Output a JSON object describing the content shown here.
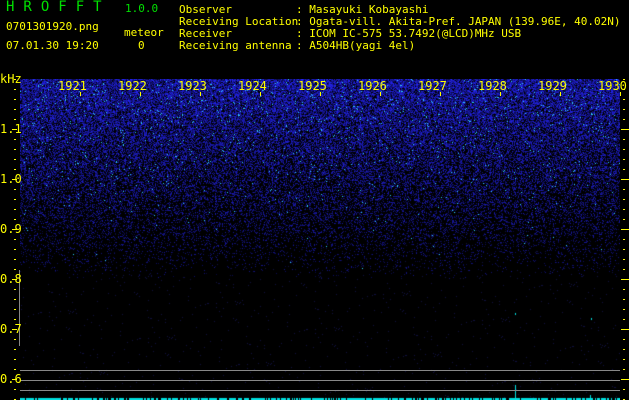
{
  "app": {
    "title": "HROFFT",
    "version": "1.0.0"
  },
  "file": {
    "name": "0701301920.png",
    "datetime": "07.01.30 19:20"
  },
  "meteor": {
    "label": "meteor",
    "count": "0"
  },
  "info": [
    {
      "label": "Observer",
      "value": "Masayuki Kobayashi"
    },
    {
      "label": "Receiving Location",
      "value": "Ogata-vill. Akita-Pref. JAPAN (139.96E, 40.02N)"
    },
    {
      "label": "Receiver",
      "value": "ICOM IC-575 53.7492(@LCD)MHz USB"
    },
    {
      "label": "Receiving antenna",
      "value": "A504HB(yagi 4el)"
    }
  ],
  "axis": {
    "unit": "kHz",
    "freq_labels": [
      "1.1",
      "1.0",
      "0.9",
      "0.8",
      "0.7",
      "0.6"
    ],
    "time_labels": [
      "1921",
      "1922",
      "1923",
      "1924",
      "1925",
      "1926",
      "1927",
      "1928",
      "1929",
      "1930"
    ]
  },
  "colors": {
    "text": "#ffff00",
    "title": "#00e000",
    "signal": "#0000ff",
    "echo": "#00ffff"
  }
}
